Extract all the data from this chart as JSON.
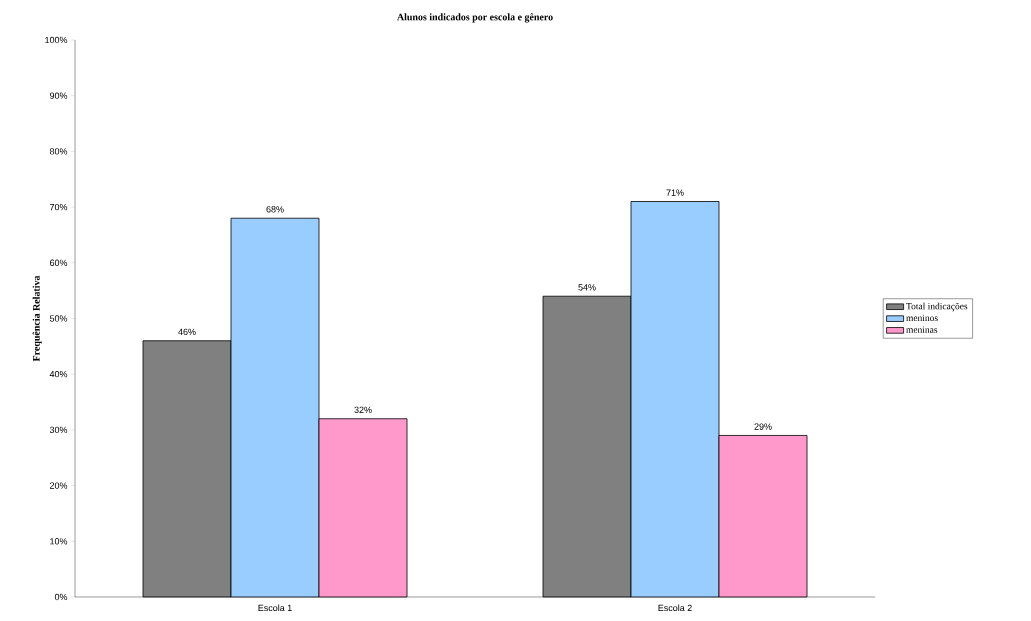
{
  "chart_data": {
    "type": "bar",
    "title": "Alunos indicados por escola e gênero",
    "ylabel": "Frequência Relativa",
    "categories": [
      "Escola 1",
      "Escola 2"
    ],
    "series": [
      {
        "name": "Total indicações",
        "color": "#808080",
        "values": [
          46,
          54
        ],
        "value_labels": [
          "46%",
          "54%"
        ]
      },
      {
        "name": "meninos",
        "color": "#99ccff",
        "values": [
          68,
          71
        ],
        "value_labels": [
          "68%",
          "71%"
        ]
      },
      {
        "name": "meninas",
        "color": "#ff99cc",
        "values": [
          32,
          29
        ],
        "value_labels": [
          "32%",
          "29%"
        ]
      }
    ],
    "ylim": [
      0,
      100
    ],
    "yticks": [
      {
        "value": 0,
        "label": "0%"
      },
      {
        "value": 10,
        "label": "10%"
      },
      {
        "value": 20,
        "label": "20%"
      },
      {
        "value": 30,
        "label": "30%"
      },
      {
        "value": 40,
        "label": "40%"
      },
      {
        "value": 50,
        "label": "50%"
      },
      {
        "value": 60,
        "label": "60%"
      },
      {
        "value": 70,
        "label": "70%"
      },
      {
        "value": 80,
        "label": "80%"
      },
      {
        "value": 90,
        "label": "90%"
      },
      {
        "value": 100,
        "label": "100%"
      }
    ],
    "legend": "right"
  }
}
